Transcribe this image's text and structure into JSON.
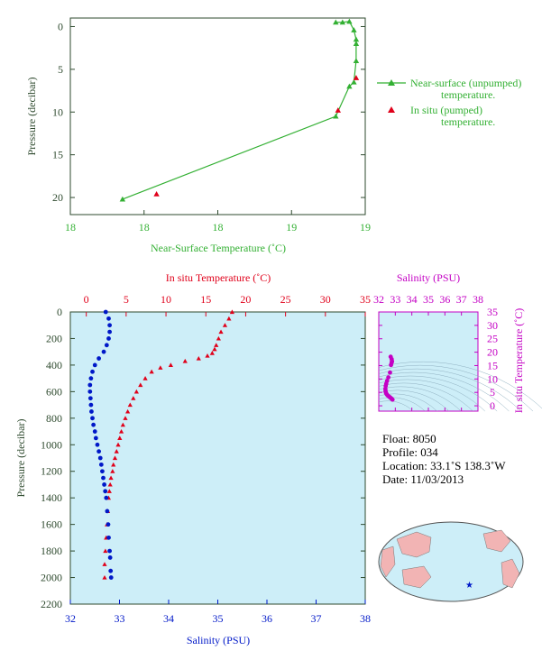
{
  "colors": {
    "axis_dark_green": "#2e4a2e",
    "near_surface_green": "#33b033",
    "in_situ_red": "#e0001a",
    "salinity_blue": "#0018c8",
    "salinity_axis_magenta": "#c400c4",
    "plot_bg": "#cdeef8",
    "land_pink": "#f2b4b4",
    "ocean_blue": "#cdeef8"
  },
  "top_chart": {
    "ylabel": "Pressure (decibar)",
    "xlabel": "Near-Surface Temperature (˚C)",
    "x_ticks": [
      "18",
      "18",
      "18",
      "19",
      "19"
    ],
    "y_ticks": [
      "0",
      "5",
      "10",
      "15",
      "20"
    ],
    "legend": {
      "near_surface_line1": "Near-surface (unpumped)",
      "near_surface_line2": "temperature.",
      "in_situ_line1": "In situ (pumped)",
      "in_situ_line2": "temperature."
    }
  },
  "main_chart": {
    "top_axis_label": "In situ Temperature (˚C)",
    "bottom_axis_label": "Salinity (PSU)",
    "ylabel": "Pressure (decibar)",
    "temp_ticks": [
      "0",
      "5",
      "10",
      "15",
      "20",
      "25",
      "30",
      "35"
    ],
    "sal_ticks": [
      "32",
      "33",
      "34",
      "35",
      "36",
      "37",
      "38"
    ],
    "p_ticks": [
      "0",
      "200",
      "400",
      "600",
      "800",
      "1000",
      "1200",
      "1400",
      "1600",
      "1800",
      "2000",
      "2200"
    ]
  },
  "ts_chart": {
    "sal_label": "Salinity (PSU)",
    "temp_label": "In situ Temperature (˚C)",
    "sal_ticks": [
      "32",
      "33",
      "34",
      "35",
      "36",
      "37",
      "38"
    ],
    "temp_ticks": [
      "0",
      "5",
      "10",
      "15",
      "20",
      "25",
      "30",
      "35"
    ]
  },
  "info": {
    "float": "Float:  8050",
    "profile": "Profile:  034",
    "location": "Location:  33.1˚S  138.3˚W",
    "date": "Date:  11/03/2013"
  },
  "chart_data": [
    {
      "type": "line",
      "name": "near-surface profile",
      "xlabel": "Near-Surface Temperature (˚C)",
      "ylabel": "Pressure (decibar)",
      "ylim": [
        22,
        -1
      ],
      "x_scale_note": "tick labels 18,18,18,19,19",
      "series": [
        {
          "name": "Near-surface (unpumped) temperature.",
          "marker": "triangle",
          "color": "#33b033",
          "x": [
            18.77,
            18.8,
            18.83,
            18.85,
            18.86,
            18.86,
            18.86,
            18.85,
            18.83,
            18.77,
            17.83
          ],
          "y": [
            -0.5,
            -0.5,
            -0.6,
            0.4,
            1.5,
            2.0,
            4.0,
            6.5,
            7.0,
            10.5,
            20.2
          ]
        },
        {
          "name": "In situ (pumped) temperature.",
          "marker": "triangle",
          "color": "#e0001a",
          "x": [
            18.86,
            18.78,
            17.98
          ],
          "y": [
            6.0,
            9.8,
            19.6
          ]
        }
      ]
    },
    {
      "type": "scatter",
      "name": "in situ temperature profile",
      "xlabel": "In situ Temperature (˚C)",
      "ylabel": "Pressure (decibar)",
      "xlim": [
        -2,
        35
      ],
      "ylim": [
        2200,
        0
      ],
      "series": [
        {
          "name": "In situ Temperature",
          "color": "#e0001a",
          "temperature": [
            18.3,
            17.9,
            17.4,
            16.9,
            16.6,
            16.3,
            16.1,
            15.8,
            15.2,
            14.1,
            12.4,
            10.6,
            9.3,
            8.2,
            7.4,
            6.8,
            6.3,
            5.9,
            5.5,
            5.2,
            4.9,
            4.6,
            4.4,
            4.2,
            4.0,
            3.8,
            3.6,
            3.4,
            3.3,
            3.1,
            3.0,
            2.9,
            2.8,
            2.7,
            2.6,
            2.5,
            2.4,
            2.3,
            2.3
          ],
          "pressure": [
            0,
            50,
            100,
            150,
            200,
            250,
            280,
            310,
            330,
            350,
            370,
            400,
            420,
            450,
            500,
            550,
            600,
            650,
            700,
            750,
            800,
            850,
            900,
            950,
            1000,
            1050,
            1100,
            1150,
            1200,
            1250,
            1300,
            1350,
            1400,
            1500,
            1600,
            1700,
            1800,
            1900,
            2000
          ]
        }
      ]
    },
    {
      "type": "scatter",
      "name": "salinity profile",
      "xlabel": "Salinity (PSU)",
      "ylabel": "Pressure (decibar)",
      "xlim": [
        32,
        38
      ],
      "ylim": [
        2200,
        0
      ],
      "series": [
        {
          "name": "Salinity",
          "color": "#0018c8",
          "salinity": [
            32.72,
            32.78,
            32.8,
            32.8,
            32.78,
            32.74,
            32.68,
            32.58,
            32.5,
            32.45,
            32.42,
            32.4,
            32.4,
            32.41,
            32.42,
            32.43,
            32.45,
            32.47,
            32.5,
            32.52,
            32.55,
            32.58,
            32.61,
            32.63,
            32.65,
            32.67,
            32.69,
            32.71,
            32.73,
            32.75,
            32.77,
            32.78,
            32.8,
            32.81,
            32.82,
            32.83
          ],
          "pressure": [
            0,
            50,
            100,
            150,
            200,
            250,
            300,
            350,
            400,
            450,
            500,
            550,
            600,
            650,
            700,
            750,
            800,
            850,
            900,
            950,
            1000,
            1050,
            1100,
            1150,
            1200,
            1250,
            1300,
            1350,
            1400,
            1500,
            1600,
            1700,
            1800,
            1850,
            1950,
            2000
          ]
        }
      ]
    },
    {
      "type": "scatter",
      "name": "T-S diagram",
      "xlabel": "Salinity (PSU)",
      "ylabel": "In situ Temperature (˚C)",
      "xlim": [
        32,
        38
      ],
      "ylim": [
        -2,
        35
      ],
      "series": [
        {
          "name": "T-S",
          "color": "#c400c4",
          "salinity": [
            32.72,
            32.78,
            32.8,
            32.78,
            32.74,
            32.68,
            32.58,
            32.5,
            32.45,
            32.42,
            32.4,
            32.41,
            32.43,
            32.47,
            32.52,
            32.58,
            32.65,
            32.71,
            32.77,
            32.83
          ],
          "temperature": [
            18.3,
            17.4,
            16.6,
            16.1,
            15.2,
            12.4,
            10.6,
            9.3,
            8.2,
            7.4,
            6.3,
            5.5,
            4.9,
            4.4,
            4.0,
            3.6,
            3.3,
            3.0,
            2.7,
            2.3
          ]
        }
      ]
    }
  ]
}
